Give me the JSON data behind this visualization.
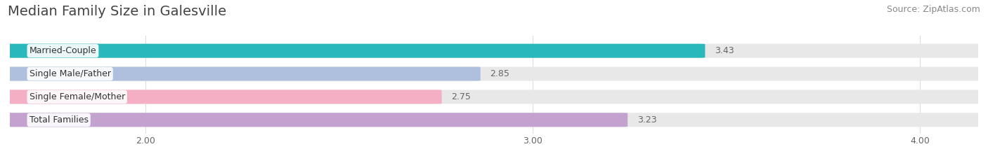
{
  "title": "Median Family Size in Galesville",
  "source": "Source: ZipAtlas.com",
  "categories": [
    "Married-Couple",
    "Single Male/Father",
    "Single Female/Mother",
    "Total Families"
  ],
  "values": [
    3.43,
    2.85,
    2.75,
    3.23
  ],
  "bar_colors": [
    "#29b8bc",
    "#aec0de",
    "#f5afc4",
    "#c3a2d0"
  ],
  "track_color": "#e8e8e8",
  "xlim_min": 1.65,
  "xlim_max": 4.15,
  "xticks": [
    2.0,
    3.0,
    4.0
  ],
  "xtick_labels": [
    "2.00",
    "3.00",
    "4.00"
  ],
  "value_text_color": "#666666",
  "title_color": "#444444",
  "source_color": "#888888",
  "background_color": "#ffffff",
  "bar_height": 0.58,
  "title_fontsize": 14,
  "source_fontsize": 9,
  "label_fontsize": 9,
  "value_fontsize": 9,
  "tick_fontsize": 9,
  "grid_color": "#dddddd"
}
